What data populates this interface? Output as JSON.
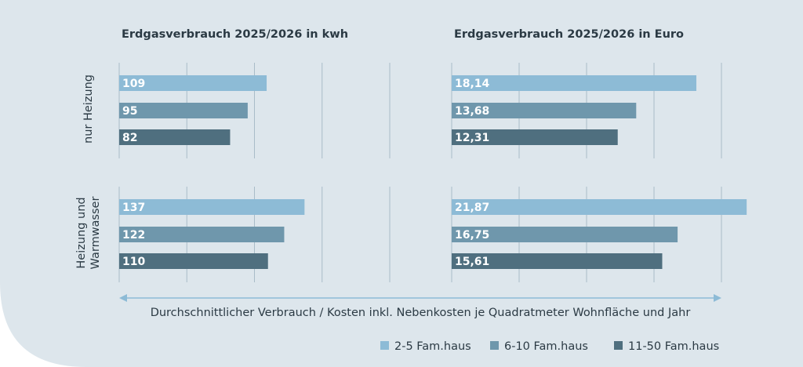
{
  "chart_data": [
    {
      "type": "bar",
      "orientation": "horizontal",
      "title": "Erdgasverbrauch 2025/2026 in kwh",
      "row_label": [
        "nur Heizung"
      ],
      "values": [
        109,
        95,
        82
      ],
      "xlim": [
        0,
        200
      ],
      "xticks": [
        0,
        50,
        100,
        150,
        200
      ],
      "grid": true
    },
    {
      "type": "bar",
      "orientation": "horizontal",
      "title": "Erdgasverbrauch 2025/2026 in Euro",
      "values": [
        18.14,
        13.68,
        12.31
      ],
      "value_labels": [
        "18,14",
        "13,68",
        "12,31"
      ],
      "xlim": [
        0,
        20
      ],
      "xticks": [
        0,
        5,
        10,
        15,
        20
      ],
      "grid": true
    },
    {
      "type": "bar",
      "orientation": "horizontal",
      "row_label": [
        "Heizung und",
        "Warmwasser"
      ],
      "values": [
        137,
        122,
        110
      ],
      "xlim": [
        0,
        200
      ],
      "xticks": [
        0,
        50,
        100,
        150,
        200
      ],
      "grid": true
    },
    {
      "type": "bar",
      "orientation": "horizontal",
      "values": [
        21.87,
        16.75,
        15.61
      ],
      "value_labels": [
        "21,87",
        "16,75",
        "15,61"
      ],
      "xlim": [
        0,
        20
      ],
      "xticks": [
        0,
        5,
        10,
        15,
        20
      ],
      "grid": true
    }
  ],
  "xlabel": "Durchschnittlicher Verbrauch / Kosten inkl. Nebenkosten je Quadratmeter Wohnfläche und Jahr",
  "legend": {
    "position": "bottom-right",
    "entries": [
      {
        "name": "2-5 Fam.haus",
        "color": "#8dbbd6"
      },
      {
        "name": "6-10 Fam.haus",
        "color": "#6f97ac"
      },
      {
        "name": "11-50 Fam.haus",
        "color": "#4f6f7f"
      }
    ]
  }
}
